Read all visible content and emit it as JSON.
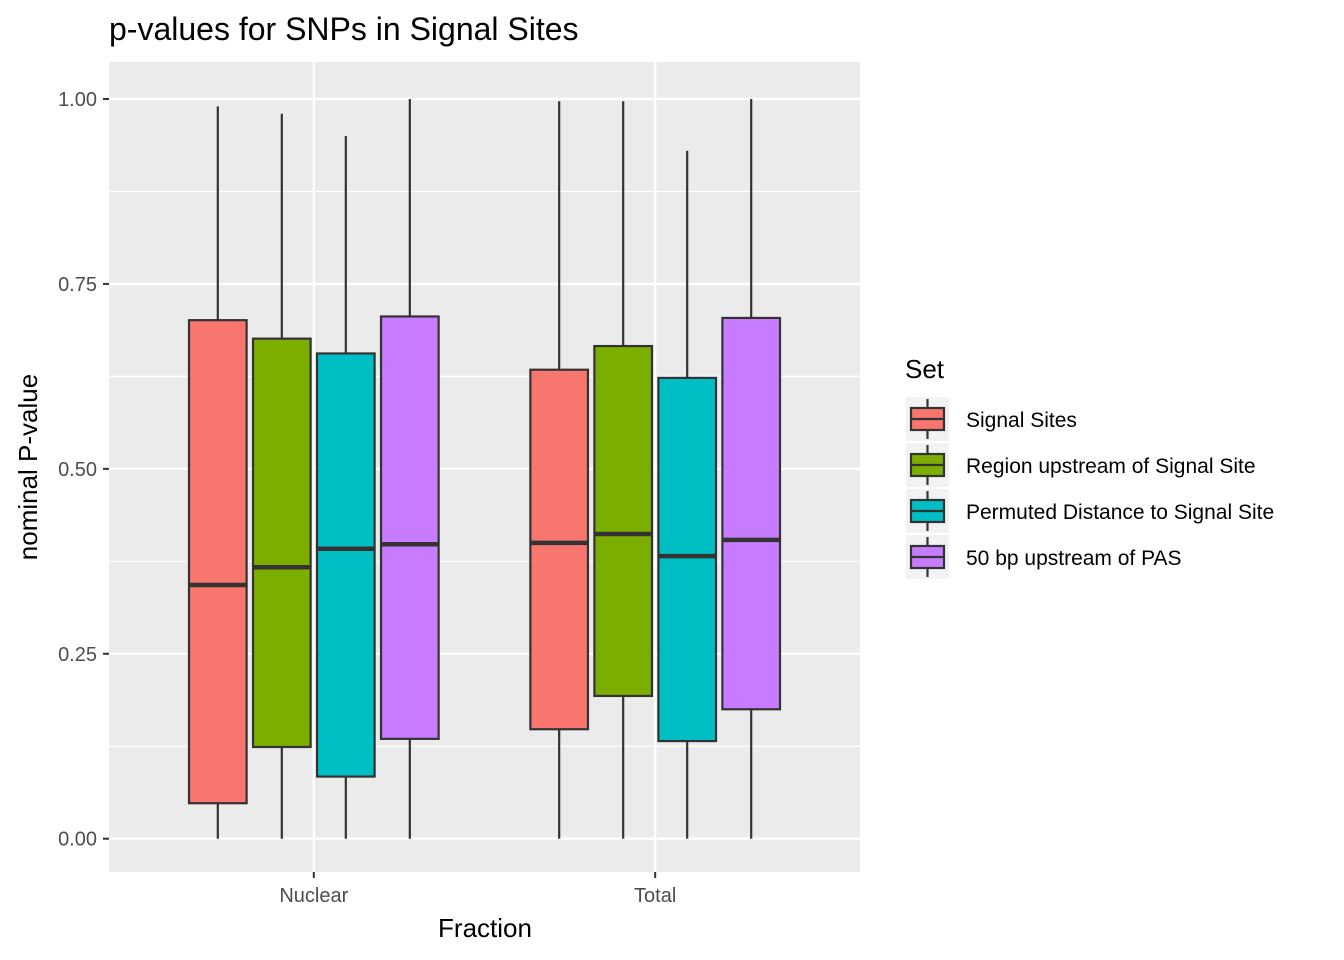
{
  "chart_data": {
    "type": "boxplot",
    "title": "p-values for SNPs in Signal Sites",
    "xlabel": "Fraction",
    "ylabel": "nominal P-value",
    "categories": [
      "Nuclear",
      "Total"
    ],
    "ylim": [
      -0.045,
      1.05
    ],
    "yticks": [
      0.0,
      0.25,
      0.5,
      0.75,
      1.0
    ],
    "ytick_labels": [
      "0.00",
      "0.25",
      "0.50",
      "0.75",
      "1.00"
    ],
    "grid": true,
    "legend": {
      "title": "Set",
      "position": "right"
    },
    "series": [
      {
        "name": "Signal Sites",
        "color": "#F8766D",
        "boxes": [
          {
            "min": 0.0,
            "q1": 0.048,
            "median": 0.343,
            "q3": 0.701,
            "max": 0.99
          },
          {
            "min": 0.0,
            "q1": 0.148,
            "median": 0.4,
            "q3": 0.634,
            "max": 0.997
          }
        ]
      },
      {
        "name": "Region upstream of Signal Site",
        "color": "#7CAE00",
        "boxes": [
          {
            "min": 0.0,
            "q1": 0.124,
            "median": 0.367,
            "q3": 0.676,
            "max": 0.98
          },
          {
            "min": 0.0,
            "q1": 0.193,
            "median": 0.412,
            "q3": 0.666,
            "max": 0.997
          }
        ]
      },
      {
        "name": "Permuted Distance to Signal Site",
        "color": "#00BFC4",
        "boxes": [
          {
            "min": 0.0,
            "q1": 0.084,
            "median": 0.392,
            "q3": 0.656,
            "max": 0.95
          },
          {
            "min": 0.0,
            "q1": 0.132,
            "median": 0.382,
            "q3": 0.623,
            "max": 0.93
          }
        ]
      },
      {
        "name": "50 bp upstream of PAS",
        "color": "#C77CFF",
        "boxes": [
          {
            "min": 0.0,
            "q1": 0.135,
            "median": 0.398,
            "q3": 0.706,
            "max": 1.0
          },
          {
            "min": 0.0,
            "q1": 0.175,
            "median": 0.404,
            "q3": 0.704,
            "max": 1.0
          }
        ]
      }
    ]
  }
}
